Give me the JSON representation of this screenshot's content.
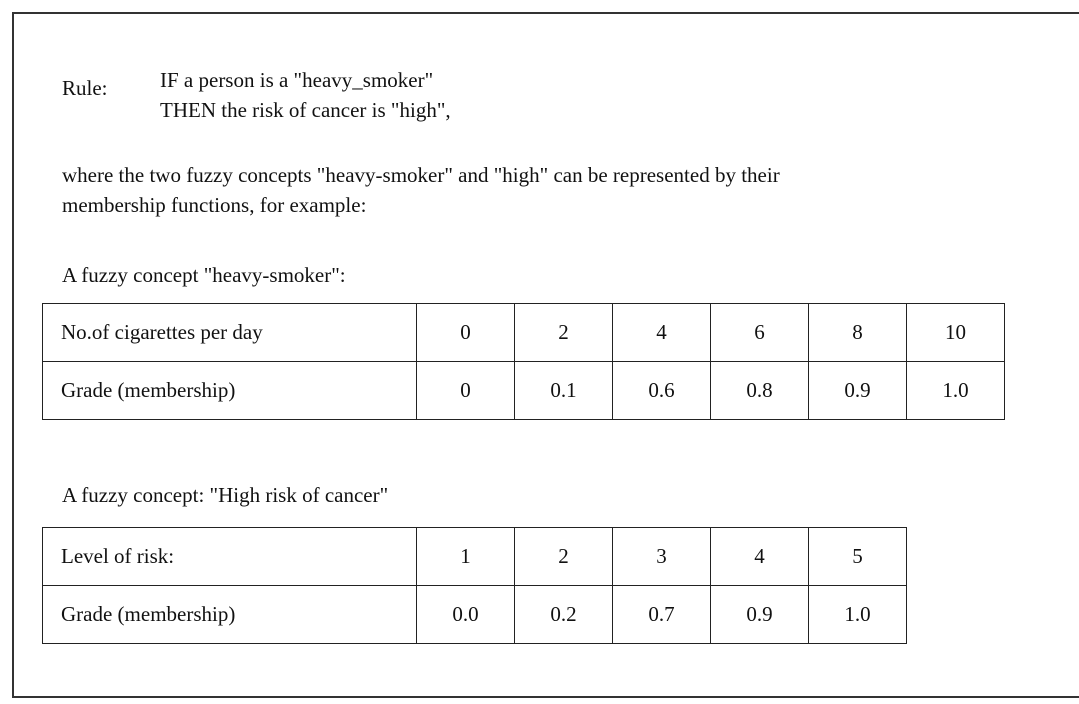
{
  "rule": {
    "label": "Rule:",
    "lines": [
      "IF a person is a \"heavy_smoker\"",
      "THEN the risk of cancer is \"high\","
    ]
  },
  "paragraph": [
    "where the two fuzzy concepts  \"heavy-smoker\" and \"high\" can be represented by their",
    "membership functions, for example:"
  ],
  "tables": [
    {
      "heading": "A fuzzy concept \"heavy-smoker\":",
      "rows": [
        [
          "No.of cigarettes per day",
          "0",
          "2",
          "4",
          "6",
          "8",
          "10"
        ],
        [
          "Grade (membership)",
          "0",
          "0.1",
          "0.6",
          "0.8",
          "0.9",
          "1.0"
        ]
      ]
    },
    {
      "heading": "A fuzzy concept: \"High risk of cancer\"",
      "rows": [
        [
          "Level of risk:",
          "1",
          "2",
          "3",
          "4",
          "5"
        ],
        [
          "Grade (membership)",
          "0.0",
          "0.2",
          "0.7",
          "0.9",
          "1.0"
        ]
      ]
    }
  ]
}
